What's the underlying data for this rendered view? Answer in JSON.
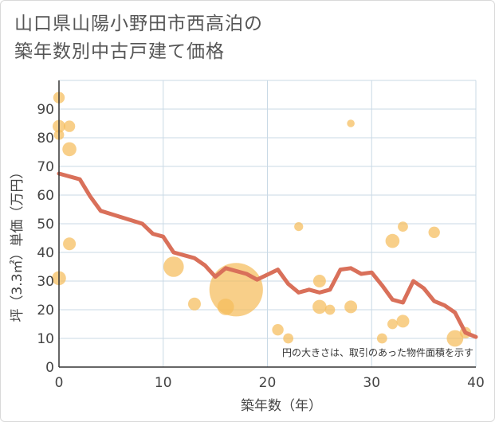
{
  "chart_data": {
    "type": "scatter+line",
    "title_line1": "山口県山陽小野田市西高泊の",
    "title_line2": "築年数別中古戸建て価格",
    "xlabel": "築年数（年）",
    "ylabel": "坪（3.3㎡）単価（万円）",
    "xlim": [
      0,
      40
    ],
    "ylim": [
      0,
      100
    ],
    "xticks": [
      0,
      10,
      20,
      30,
      40
    ],
    "yticks": [
      0,
      10,
      20,
      30,
      40,
      50,
      60,
      70,
      80,
      90
    ],
    "grid": true,
    "note": "円の大きさは、取引のあった物件面積を示す",
    "colors": {
      "bubble": "#f5bd5c",
      "line": "#d9705a",
      "grid": "#c9d9e6"
    },
    "bubbles": [
      {
        "x": 0,
        "y": 94,
        "s": 0.9
      },
      {
        "x": 0,
        "y": 84,
        "s": 1.0
      },
      {
        "x": 0,
        "y": 81,
        "s": 0.8
      },
      {
        "x": 0,
        "y": 31,
        "s": 1.1
      },
      {
        "x": 1,
        "y": 84,
        "s": 0.9
      },
      {
        "x": 1,
        "y": 76,
        "s": 1.1
      },
      {
        "x": 1,
        "y": 43,
        "s": 1.0
      },
      {
        "x": 11,
        "y": 35,
        "s": 1.6
      },
      {
        "x": 13,
        "y": 22,
        "s": 1.0
      },
      {
        "x": 16,
        "y": 21,
        "s": 1.3
      },
      {
        "x": 17,
        "y": 27,
        "s": 4.2
      },
      {
        "x": 21,
        "y": 13,
        "s": 0.9
      },
      {
        "x": 22,
        "y": 10,
        "s": 0.8
      },
      {
        "x": 23,
        "y": 49,
        "s": 0.7
      },
      {
        "x": 25,
        "y": 30,
        "s": 1.0
      },
      {
        "x": 25,
        "y": 21,
        "s": 1.1
      },
      {
        "x": 26,
        "y": 20,
        "s": 0.8
      },
      {
        "x": 28,
        "y": 85,
        "s": 0.6
      },
      {
        "x": 28,
        "y": 21,
        "s": 1.0
      },
      {
        "x": 31,
        "y": 10,
        "s": 0.8
      },
      {
        "x": 32,
        "y": 44,
        "s": 1.1
      },
      {
        "x": 32,
        "y": 15,
        "s": 0.8
      },
      {
        "x": 33,
        "y": 49,
        "s": 0.8
      },
      {
        "x": 33,
        "y": 16,
        "s": 1.0
      },
      {
        "x": 36,
        "y": 47,
        "s": 0.9
      },
      {
        "x": 38,
        "y": 10,
        "s": 1.3
      },
      {
        "x": 39,
        "y": 12,
        "s": 0.9
      }
    ],
    "trend": {
      "x": [
        0,
        2,
        3,
        4,
        8,
        9,
        10,
        11,
        13,
        14,
        15,
        16,
        18,
        19,
        21,
        22,
        23,
        24,
        25,
        26,
        27,
        28,
        29,
        30,
        31,
        32,
        33,
        34,
        35,
        36,
        37,
        38,
        39,
        40
      ],
      "y": [
        67.5,
        65.5,
        59.5,
        54.5,
        50,
        46.5,
        45.5,
        40,
        38,
        35.5,
        31.5,
        34.5,
        32.5,
        30.5,
        34,
        29,
        26,
        27,
        26,
        27,
        34,
        34.5,
        32.5,
        33,
        28.5,
        23.5,
        22.5,
        30,
        27.5,
        23,
        21.5,
        19,
        12,
        10.5
      ]
    }
  }
}
